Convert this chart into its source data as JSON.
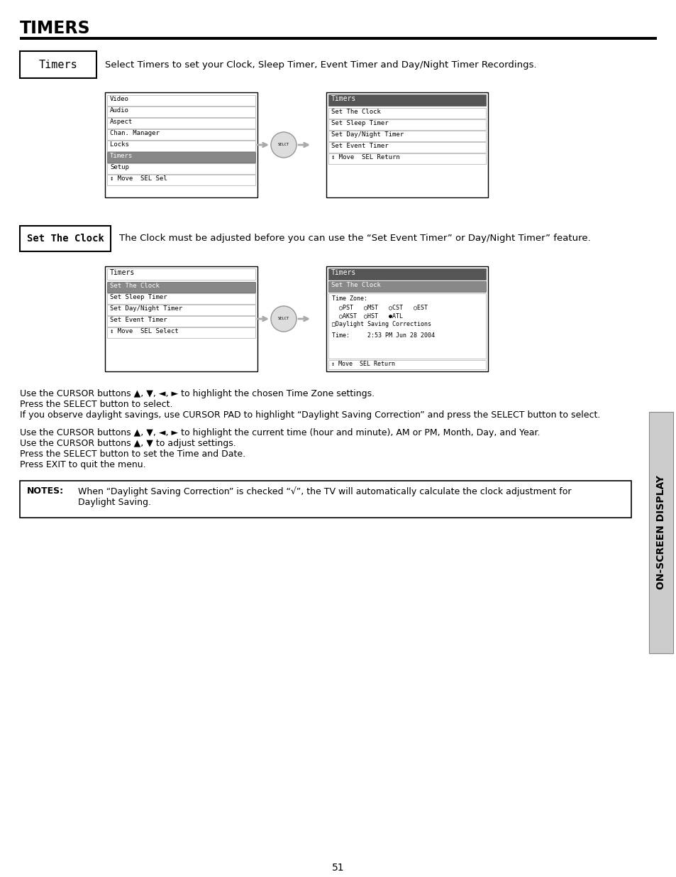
{
  "title": "TIMERS",
  "page_bg": "#ffffff",
  "page_number": "51",
  "timers_label": "Timers",
  "timers_desc": "Select Timers to set your Clock, Sleep Timer, Event Timer and Day/Night Timer Recordings.",
  "set_clock_label": "Set The Clock",
  "set_clock_desc": "The Clock must be adjusted before you can use the “Set Event Timer” or Day/Night Timer” feature.",
  "menu1_items": [
    "Video",
    "Audio",
    "Aspect",
    "Chan. Manager",
    "Locks",
    "Timers",
    "Setup",
    "↕ Move  SEL Sel"
  ],
  "menu1_highlighted": 5,
  "menu2_title": "Timers",
  "menu2_items": [
    "Set The Clock",
    "Set Sleep Timer",
    "Set Day/Night Timer",
    "Set Event Timer",
    "↕ Move  SEL Return"
  ],
  "menu3_title": "Timers",
  "menu3_items": [
    "Set The Clock",
    "Set Sleep Timer",
    "Set Day/Night Timer",
    "Set Event Timer",
    "↕ Move  SEL Select"
  ],
  "menu3_highlighted": 0,
  "menu4_title": "Timers",
  "menu4_sub_title": "Set The Clock",
  "menu4_tz_label": "Time Zone:",
  "menu4_timezone_line1": "  ○PST   ○MST   ○CST   ○EST",
  "menu4_timezone_line2": "  ○AKST  ○HST   ●ATL",
  "menu4_daylight": "□Daylight Saving Corrections",
  "menu4_time": "Time:     2:53 PM Jun 28 2004",
  "menu4_footer": "↕ Move  SEL Return",
  "para1_lines": [
    "Use the CURSOR buttons ▲, ▼, ◄, ► to highlight the chosen Time Zone settings.",
    "Press the SELECT button to select.",
    "If you observe daylight savings, use CURSOR PAD to highlight “Daylight Saving Correction” and press the SELECT button to select."
  ],
  "para2_lines": [
    "Use the CURSOR buttons ▲, ▼, ◄, ► to highlight the current time (hour and minute), AM or PM, Month, Day, and Year.",
    "Use the CURSOR buttons ▲, ▼ to adjust settings.",
    "Press the SELECT button to set the Time and Date.",
    "Press EXIT to quit the menu."
  ],
  "notes_label": "NOTES:",
  "notes_text1": "When “Daylight Saving Correction” is checked “√”, the TV will automatically calculate the clock adjustment for",
  "notes_text2": "Daylight Saving.",
  "sidebar_text": "ON-SCREEN DISPLAY"
}
